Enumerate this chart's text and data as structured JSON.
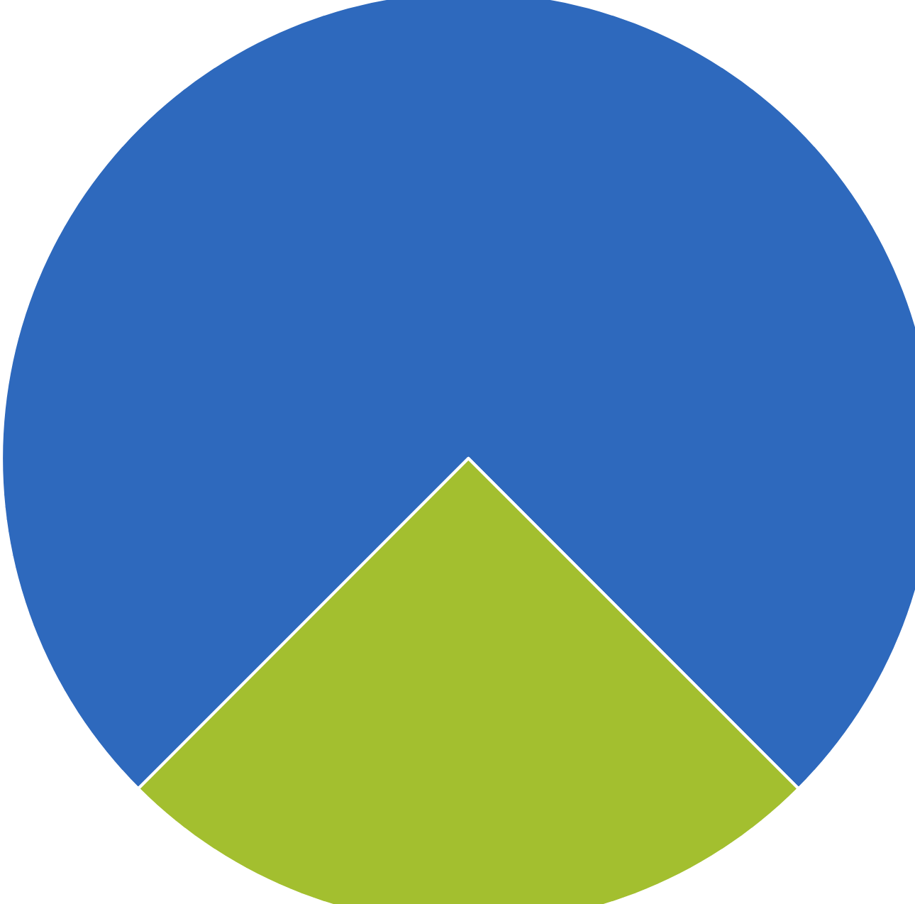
{
  "chart_data": {
    "type": "pie",
    "categories": [
      null,
      null
    ],
    "values": [
      75,
      25
    ],
    "colors": [
      "#2e69bd",
      "#a3bf2f"
    ]
  }
}
